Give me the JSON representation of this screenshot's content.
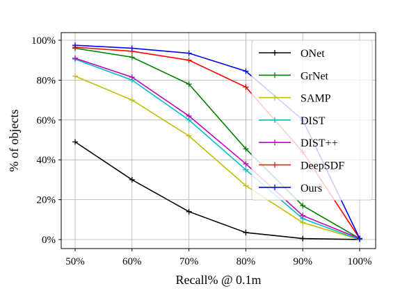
{
  "chart_data": {
    "type": "line",
    "title": "",
    "xlabel": "Recall% @ 0.1m",
    "ylabel": "% of objects",
    "x": [
      50,
      60,
      70,
      80,
      90,
      100
    ],
    "x_tick_labels": [
      "50%",
      "60%",
      "70%",
      "80%",
      "90%",
      "100%"
    ],
    "y_ticks": [
      0,
      20,
      40,
      60,
      80,
      100
    ],
    "y_tick_labels": [
      "0%",
      "20%",
      "40%",
      "60%",
      "80%",
      "100%"
    ],
    "xlim": [
      50,
      100
    ],
    "ylim": [
      0,
      100
    ],
    "grid": true,
    "legend_position": "top-right",
    "marker": "plus",
    "series": [
      {
        "name": "ONet",
        "color": "#000000",
        "values": [
          49,
          30,
          14,
          3.5,
          0.5,
          0
        ]
      },
      {
        "name": "GrNet",
        "color": "#008000",
        "values": [
          96,
          91.5,
          78,
          45.5,
          17,
          0.5
        ]
      },
      {
        "name": "SAMP",
        "color": "#bfbf00",
        "values": [
          82,
          70,
          52,
          27,
          8.5,
          0
        ]
      },
      {
        "name": "DIST",
        "color": "#00bfbf",
        "values": [
          90.5,
          80,
          60,
          35,
          10.5,
          0
        ]
      },
      {
        "name": "DIST++",
        "color": "#bf00bf",
        "values": [
          91,
          81.5,
          62,
          38,
          12,
          0.5
        ]
      },
      {
        "name": "DeepSDF",
        "color": "#ff0000",
        "values": [
          96.5,
          94.5,
          90,
          76.5,
          44,
          0.5
        ]
      },
      {
        "name": "Ours",
        "color": "#0000ff",
        "values": [
          97.5,
          96,
          93.5,
          84.5,
          60,
          0.5
        ]
      }
    ]
  }
}
